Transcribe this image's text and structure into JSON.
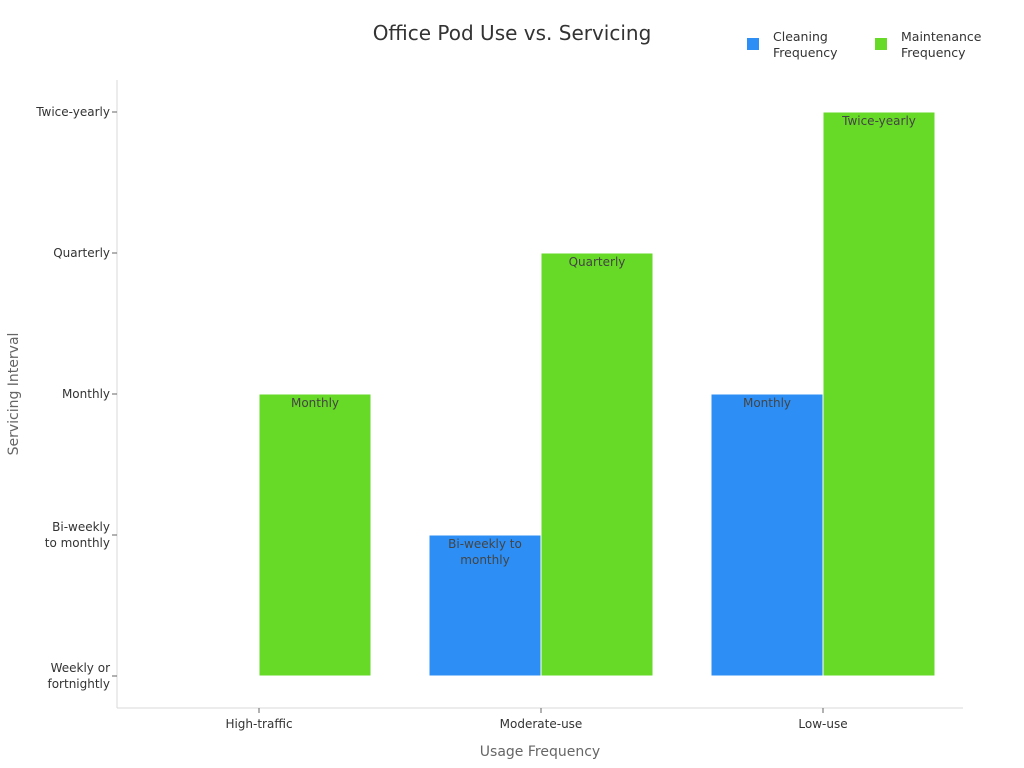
{
  "chart_data": {
    "type": "bar",
    "title": "Office Pod Use vs. Servicing",
    "xlabel": "Usage Frequency",
    "ylabel": "Servicing Interval",
    "categories": [
      "High-traffic",
      "Moderate-use",
      "Low-use"
    ],
    "y_levels": [
      "Weekly or fortnightly",
      "Bi-weekly to monthly",
      "Monthly",
      "Quarterly",
      "Twice-yearly"
    ],
    "ylim": [
      0,
      4
    ],
    "series": [
      {
        "name": "Cleaning Frequency",
        "color": "#2d8ff5",
        "values": [
          0,
          1,
          2
        ],
        "labels": [
          "",
          "Bi-weekly to monthly",
          "Monthly"
        ]
      },
      {
        "name": "Maintenance Frequency",
        "color": "#66da26",
        "values": [
          2,
          3,
          4
        ],
        "labels": [
          "Monthly",
          "Quarterly",
          "Twice-yearly"
        ]
      }
    ],
    "legend_position": "top-right",
    "grid": false
  }
}
